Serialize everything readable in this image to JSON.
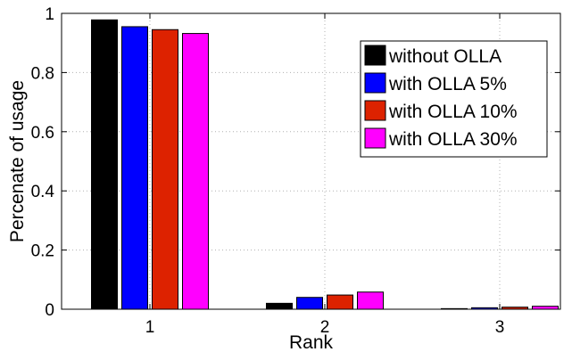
{
  "chart_data": {
    "type": "bar",
    "title": "",
    "xlabel": "Rank",
    "ylabel": "Percenate of usage",
    "categories": [
      "1",
      "2",
      "3"
    ],
    "ylim": [
      0,
      1
    ],
    "yticks": [
      "0",
      "0.2",
      "0.4",
      "0.6",
      "0.8",
      "1"
    ],
    "grid": true,
    "legend_position": "top-right",
    "series": [
      {
        "name": "without OLLA",
        "color": "#000000",
        "values": [
          0.978,
          0.02,
          0.002
        ]
      },
      {
        "name": "with OLLA 5%",
        "color": "#0000ff",
        "values": [
          0.955,
          0.04,
          0.005
        ]
      },
      {
        "name": "with OLLA 10%",
        "color": "#dd2200",
        "values": [
          0.945,
          0.048,
          0.007
        ]
      },
      {
        "name": "with OLLA 30%",
        "color": "#ff00ff",
        "values": [
          0.932,
          0.058,
          0.01
        ]
      }
    ]
  }
}
